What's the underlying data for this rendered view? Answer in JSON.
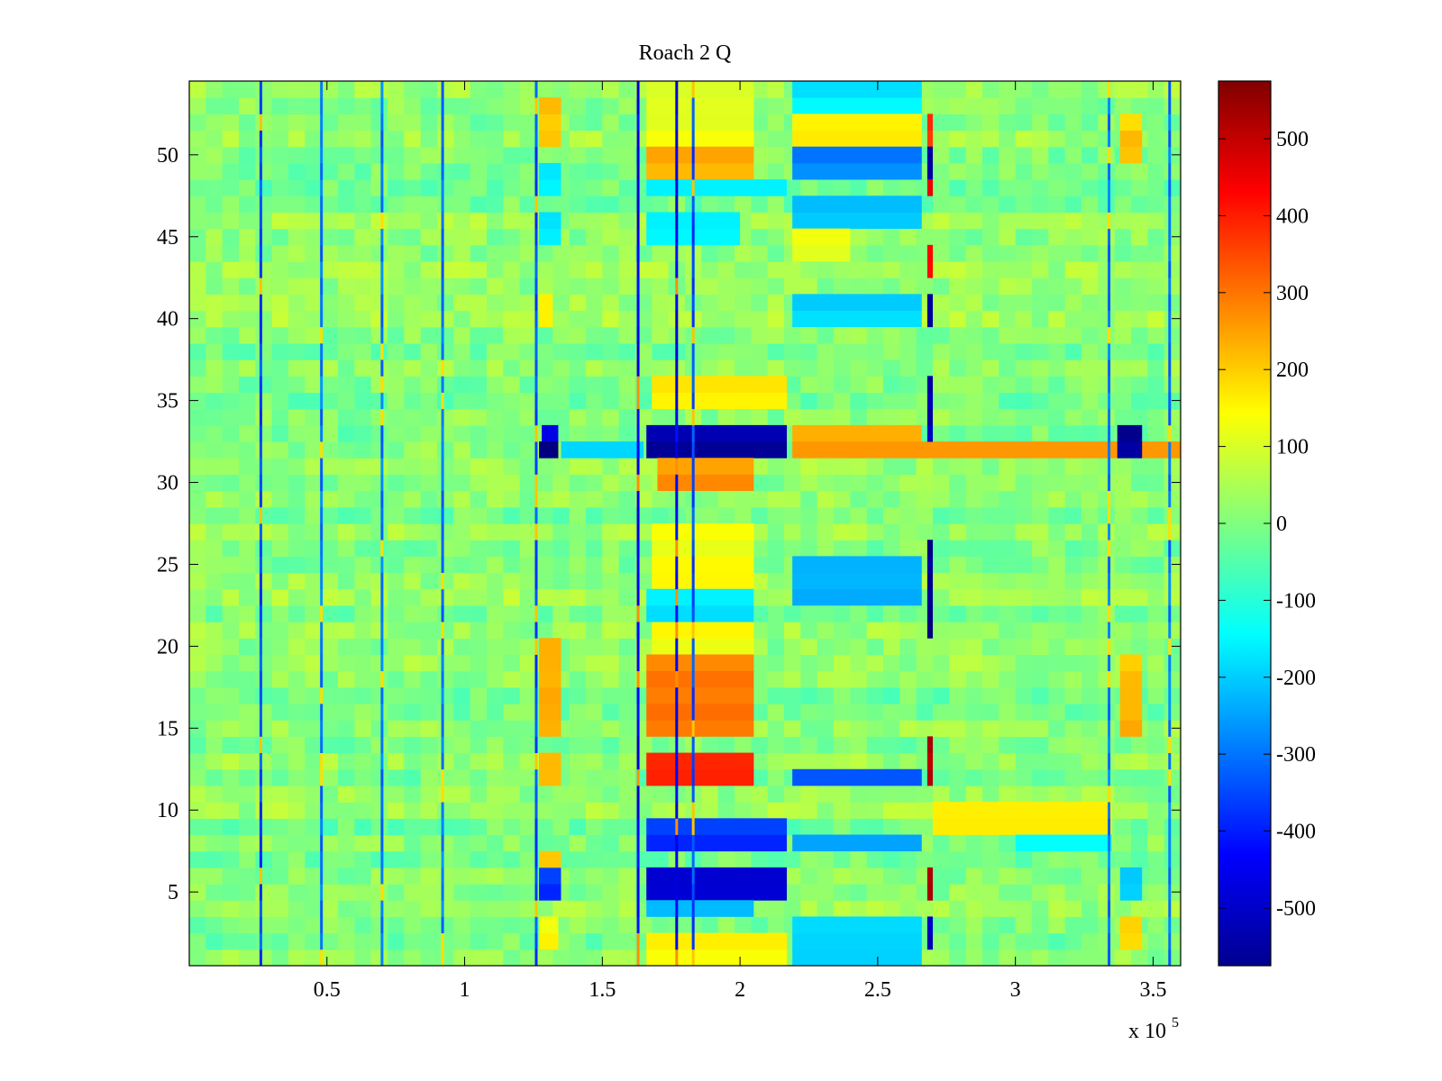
{
  "chart_data": {
    "type": "heatmap",
    "title": "Roach 2 Q",
    "xlabel": "",
    "ylabel": "",
    "x_multiplier_label": "x 10",
    "x_multiplier_exponent": "5",
    "xlim": [
      0,
      3.6
    ],
    "ylim": [
      0.5,
      54.5
    ],
    "x_ticks": [
      0.5,
      1,
      1.5,
      2,
      2.5,
      3,
      3.5
    ],
    "x_tick_labels": [
      "0.5",
      "1",
      "1.5",
      "2",
      "2.5",
      "3",
      "3.5"
    ],
    "y_ticks": [
      5,
      10,
      15,
      20,
      25,
      30,
      35,
      40,
      45,
      50
    ],
    "y_tick_labels": [
      "5",
      "10",
      "15",
      "20",
      "25",
      "30",
      "35",
      "40",
      "45",
      "50"
    ],
    "colorbar": {
      "colormap": "jet",
      "clim": [
        -575,
        575
      ],
      "ticks": [
        500,
        400,
        300,
        200,
        100,
        0,
        -100,
        -200,
        -300,
        -400,
        -500
      ],
      "tick_labels": [
        "500",
        "400",
        "300",
        "200",
        "100",
        "0",
        "-100",
        "-200",
        "-300",
        "-400",
        "-500"
      ]
    },
    "n_rows": 54,
    "background_value": 10,
    "vertical_lines": [
      {
        "x": 0.26,
        "value": -350
      },
      {
        "x": 0.48,
        "value": -300
      },
      {
        "x": 0.7,
        "value": -300
      },
      {
        "x": 0.92,
        "value": -300
      },
      {
        "x": 1.26,
        "value": -350
      },
      {
        "x": 1.63,
        "value": -450
      },
      {
        "x": 1.77,
        "value": -450
      },
      {
        "x": 1.83,
        "value": -350
      },
      {
        "x": 3.34,
        "value": -300
      },
      {
        "x": 3.56,
        "value": -300
      }
    ],
    "patches": [
      {
        "x": [
          1.27,
          1.35
        ],
        "rows": [
          51,
          53
        ],
        "value": 200
      },
      {
        "x": [
          1.27,
          1.35
        ],
        "rows": [
          48,
          49
        ],
        "value": -170
      },
      {
        "x": [
          1.27,
          1.35
        ],
        "rows": [
          45,
          46
        ],
        "value": -150
      },
      {
        "x": [
          1.27,
          1.32
        ],
        "rows": [
          40,
          41
        ],
        "value": 150
      },
      {
        "x": [
          1.28,
          1.34
        ],
        "rows": [
          33,
          33
        ],
        "value": -480
      },
      {
        "x": [
          1.27,
          1.34
        ],
        "rows": [
          32,
          32
        ],
        "value": -560
      },
      {
        "x": [
          1.35,
          1.65
        ],
        "rows": [
          32,
          32
        ],
        "value": -180
      },
      {
        "x": [
          1.27,
          1.35
        ],
        "rows": [
          15,
          20
        ],
        "value": 230
      },
      {
        "x": [
          1.27,
          1.35
        ],
        "rows": [
          12,
          13
        ],
        "value": 240
      },
      {
        "x": [
          1.27,
          1.35
        ],
        "rows": [
          5,
          6
        ],
        "value": -380
      },
      {
        "x": [
          1.27,
          1.35
        ],
        "rows": [
          7,
          7
        ],
        "value": 200
      },
      {
        "x": [
          1.27,
          1.34
        ],
        "rows": [
          2,
          3
        ],
        "value": 150
      },
      {
        "x": [
          1.66,
          2.05
        ],
        "rows": [
          53,
          54
        ],
        "value": 110
      },
      {
        "x": [
          1.66,
          2.05
        ],
        "rows": [
          50,
          52
        ],
        "value": 120
      },
      {
        "x": [
          1.66,
          2.05
        ],
        "rows": [
          49,
          50
        ],
        "value": 230
      },
      {
        "x": [
          1.66,
          2.17
        ],
        "rows": [
          48,
          48
        ],
        "value": -150
      },
      {
        "x": [
          1.66,
          2.0
        ],
        "rows": [
          45,
          46
        ],
        "value": -170
      },
      {
        "x": [
          1.68,
          2.17
        ],
        "rows": [
          35,
          36
        ],
        "value": 150
      },
      {
        "x": [
          1.66,
          2.17
        ],
        "rows": [
          32,
          33
        ],
        "value": -540
      },
      {
        "x": [
          1.7,
          2.05
        ],
        "rows": [
          30,
          31
        ],
        "value": 260
      },
      {
        "x": [
          1.68,
          2.05
        ],
        "rows": [
          20,
          27
        ],
        "value": 140
      },
      {
        "x": [
          1.66,
          2.05
        ],
        "rows": [
          22,
          23
        ],
        "value": -170
      },
      {
        "x": [
          1.66,
          2.05
        ],
        "rows": [
          15,
          19
        ],
        "value": 300
      },
      {
        "x": [
          1.66,
          2.05
        ],
        "rows": [
          12,
          13
        ],
        "value": 380
      },
      {
        "x": [
          1.66,
          2.17
        ],
        "rows": [
          8,
          9
        ],
        "value": -380
      },
      {
        "x": [
          1.66,
          2.17
        ],
        "rows": [
          5,
          6
        ],
        "value": -460
      },
      {
        "x": [
          1.66,
          2.05
        ],
        "rows": [
          4,
          4
        ],
        "value": -200
      },
      {
        "x": [
          1.66,
          2.17
        ],
        "rows": [
          1,
          2
        ],
        "value": 140
      },
      {
        "x": [
          2.19,
          2.66
        ],
        "rows": [
          53,
          54
        ],
        "value": -170
      },
      {
        "x": [
          2.19,
          2.66
        ],
        "rows": [
          51,
          52
        ],
        "value": 150
      },
      {
        "x": [
          2.19,
          2.66
        ],
        "rows": [
          49,
          50
        ],
        "value": -280
      },
      {
        "x": [
          2.19,
          2.66
        ],
        "rows": [
          46,
          47
        ],
        "value": -200
      },
      {
        "x": [
          2.19,
          2.4
        ],
        "rows": [
          44,
          45
        ],
        "value": 130
      },
      {
        "x": [
          2.19,
          2.66
        ],
        "rows": [
          40,
          41
        ],
        "value": -200
      },
      {
        "x": [
          2.19,
          2.66
        ],
        "rows": [
          33,
          33
        ],
        "value": 230
      },
      {
        "x": [
          2.19,
          3.6
        ],
        "rows": [
          32,
          32
        ],
        "value": 240
      },
      {
        "x": [
          2.19,
          2.66
        ],
        "rows": [
          23,
          25
        ],
        "value": -220
      },
      {
        "x": [
          2.19,
          2.66
        ],
        "rows": [
          12,
          12
        ],
        "value": -320
      },
      {
        "x": [
          2.19,
          2.66
        ],
        "rows": [
          8,
          8
        ],
        "value": -260
      },
      {
        "x": [
          2.19,
          2.66
        ],
        "rows": [
          1,
          3
        ],
        "value": -180
      },
      {
        "x": [
          2.68,
          2.7
        ],
        "rows": [
          51,
          52
        ],
        "value": 380
      },
      {
        "x": [
          2.68,
          2.7
        ],
        "rows": [
          49,
          50
        ],
        "value": -560
      },
      {
        "x": [
          2.68,
          2.7
        ],
        "rows": [
          48,
          48
        ],
        "value": 450
      },
      {
        "x": [
          2.68,
          2.7
        ],
        "rows": [
          43,
          44
        ],
        "value": 420
      },
      {
        "x": [
          2.68,
          2.7
        ],
        "rows": [
          40,
          41
        ],
        "value": -560
      },
      {
        "x": [
          2.68,
          2.7
        ],
        "rows": [
          33,
          36
        ],
        "value": -520
      },
      {
        "x": [
          2.68,
          2.7
        ],
        "rows": [
          21,
          26
        ],
        "value": -560
      },
      {
        "x": [
          2.68,
          2.7
        ],
        "rows": [
          12,
          14
        ],
        "value": 520
      },
      {
        "x": [
          2.68,
          2.7
        ],
        "rows": [
          5,
          6
        ],
        "value": 520
      },
      {
        "x": [
          2.68,
          2.7
        ],
        "rows": [
          2,
          3
        ],
        "value": -500
      },
      {
        "x": [
          2.7,
          3.35
        ],
        "rows": [
          9,
          10
        ],
        "value": 140
      },
      {
        "x": [
          3.0,
          3.35
        ],
        "rows": [
          8,
          8
        ],
        "value": -150
      },
      {
        "x": [
          3.37,
          3.46
        ],
        "rows": [
          32,
          33
        ],
        "value": -540
      },
      {
        "x": [
          3.38,
          3.46
        ],
        "rows": [
          50,
          52
        ],
        "value": 200
      },
      {
        "x": [
          3.38,
          3.46
        ],
        "rows": [
          15,
          19
        ],
        "value": 220
      },
      {
        "x": [
          3.38,
          3.46
        ],
        "rows": [
          2,
          3
        ],
        "value": 200
      },
      {
        "x": [
          3.38,
          3.46
        ],
        "rows": [
          5,
          6
        ],
        "value": -220
      }
    ]
  }
}
